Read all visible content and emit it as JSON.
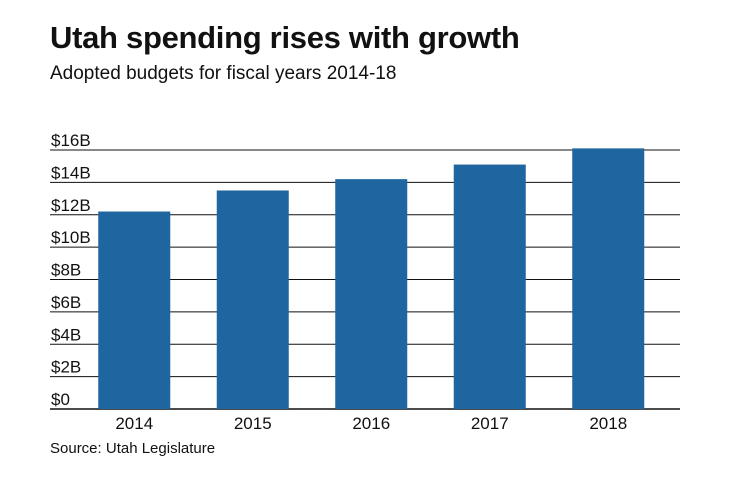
{
  "chart_data": {
    "type": "bar",
    "title": "Utah spending rises with growth",
    "subtitle": "Adopted budgets for fiscal years 2014-18",
    "source": "Source: Utah Legislature",
    "categories": [
      "2014",
      "2015",
      "2016",
      "2017",
      "2018"
    ],
    "values": [
      12.2,
      13.5,
      14.2,
      15.1,
      16.1
    ],
    "yticks": [
      0,
      2,
      4,
      6,
      8,
      10,
      12,
      14,
      16
    ],
    "ytick_labels": [
      "$0",
      "$2B",
      "$4B",
      "$6B",
      "$8B",
      "$10B",
      "$12B",
      "$14B",
      "$16B"
    ],
    "ylim": [
      0,
      16
    ],
    "grid": true,
    "bar_color": "#1f65a0",
    "grid_color": "#111111"
  }
}
